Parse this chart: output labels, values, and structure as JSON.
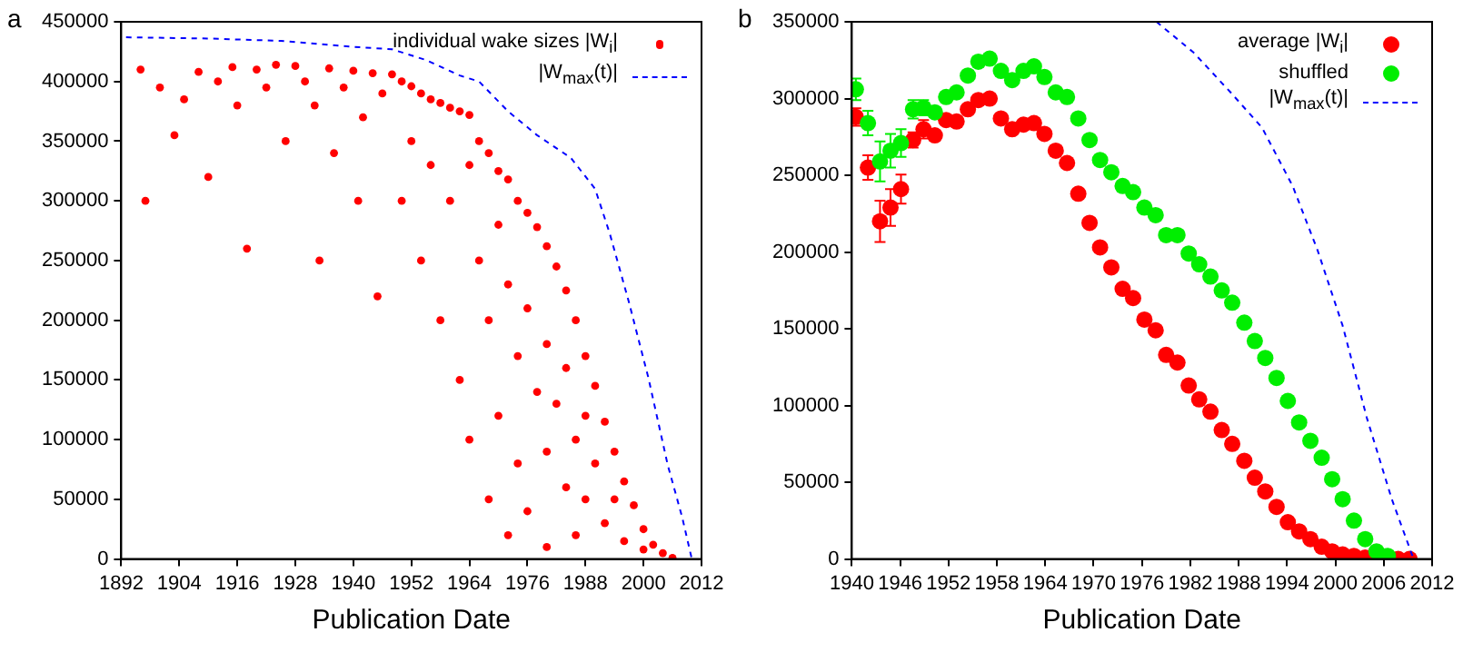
{
  "chart_data": [
    {
      "type": "scatter",
      "title": "a",
      "xlabel": "Publication Date",
      "xlim": [
        1892,
        2012
      ],
      "xticks": [
        1892,
        1904,
        1916,
        1928,
        1940,
        1952,
        1964,
        1976,
        1988,
        2000,
        2012
      ],
      "ylim": [
        0,
        450000
      ],
      "yticks": [
        0,
        50000,
        100000,
        150000,
        200000,
        250000,
        300000,
        350000,
        400000,
        450000
      ],
      "legend": "top right",
      "marker": "circle",
      "series": [
        {
          "name": "individual wake sizes |W$_{i}$|",
          "color": "#ff0000",
          "x": [
            1896,
            1897,
            1900,
            1903,
            1905,
            1908,
            1910,
            1912,
            1915,
            1916,
            1918,
            1920,
            1922,
            1924,
            1926,
            1928,
            1930,
            1932,
            1933,
            1935,
            1936,
            1938,
            1940,
            1941,
            1942,
            1944,
            1945,
            1946,
            1948,
            1950,
            1950,
            1952,
            1952,
            1954,
            1954,
            1956,
            1956,
            1958,
            1958,
            1960,
            1960,
            1962,
            1962,
            1964,
            1964,
            1964,
            1966,
            1966,
            1968,
            1968,
            1968,
            1970,
            1970,
            1970,
            1972,
            1972,
            1972,
            1974,
            1974,
            1974,
            1976,
            1976,
            1976,
            1978,
            1978,
            1980,
            1980,
            1980,
            1980,
            1982,
            1982,
            1984,
            1984,
            1984,
            1986,
            1986,
            1986,
            1988,
            1988,
            1988,
            1990,
            1990,
            1992,
            1992,
            1994,
            1994,
            1996,
            1996,
            1998,
            2000,
            2000,
            2002,
            2004,
            2006
          ],
          "values": [
            410000,
            300000,
            395000,
            355000,
            385000,
            408000,
            320000,
            400000,
            412000,
            380000,
            260000,
            410000,
            395000,
            414000,
            350000,
            413000,
            400000,
            380000,
            250000,
            411000,
            340000,
            395000,
            409000,
            300000,
            370000,
            407000,
            220000,
            390000,
            406000,
            400000,
            300000,
            396000,
            350000,
            390000,
            250000,
            385000,
            330000,
            382000,
            200000,
            378000,
            300000,
            375000,
            150000,
            372000,
            330000,
            100000,
            350000,
            250000,
            340000,
            200000,
            50000,
            325000,
            280000,
            120000,
            318000,
            230000,
            20000,
            300000,
            170000,
            80000,
            290000,
            210000,
            40000,
            278000,
            140000,
            262000,
            180000,
            90000,
            10000,
            245000,
            130000,
            225000,
            160000,
            60000,
            200000,
            100000,
            20000,
            170000,
            120000,
            50000,
            145000,
            80000,
            115000,
            30000,
            90000,
            50000,
            65000,
            15000,
            45000,
            25000,
            8000,
            12000,
            5000,
            1000
          ]
        },
        {
          "name": "|W$_{max}$(t)|",
          "type": "line",
          "color": "#0000ff",
          "line_style": "dashed",
          "marker": "none",
          "x": [
            1893,
            1910,
            1925,
            1940,
            1948,
            1955,
            1962,
            1966,
            1972,
            1978,
            1985,
            1990,
            1993,
            1997,
            2001,
            2005,
            2008,
            2010
          ],
          "values": [
            437000,
            436000,
            434000,
            429000,
            427000,
            418000,
            405000,
            400000,
            375000,
            355000,
            336000,
            310000,
            273000,
            215000,
            152000,
            79000,
            35000,
            0
          ]
        }
      ]
    },
    {
      "type": "scatter",
      "title": "b",
      "xlabel": "Publication Date",
      "xlim": [
        1940,
        2012
      ],
      "xticks": [
        1940,
        1946,
        1952,
        1958,
        1964,
        1970,
        1976,
        1982,
        1988,
        1994,
        2000,
        2006,
        2012
      ],
      "ylim": [
        0,
        350000
      ],
      "yticks": [
        0,
        50000,
        100000,
        150000,
        200000,
        250000,
        300000,
        350000
      ],
      "legend": "top right",
      "marker": "circle",
      "x": [
        1940.5,
        1942.0,
        1943.5,
        1944.8,
        1946.1,
        1947.6,
        1948.9,
        1950.3,
        1951.7,
        1953.0,
        1954.4,
        1955.7,
        1957.1,
        1958.5,
        1959.9,
        1961.3,
        1962.6,
        1963.9,
        1965.3,
        1966.7,
        1968.1,
        1969.5,
        1970.8,
        1972.2,
        1973.6,
        1974.9,
        1976.3,
        1977.7,
        1979.0,
        1980.4,
        1981.8,
        1983.1,
        1984.5,
        1985.9,
        1987.2,
        1988.7,
        1990.0,
        1991.3,
        1992.7,
        1994.1,
        1995.5,
        1996.9,
        1998.3,
        1999.6,
        2000.9,
        2002.3,
        2003.7,
        2005.1,
        2006.5,
        2007.8,
        2009.2
      ],
      "series": [
        {
          "name": "average |W$_{i}$|",
          "color": "#ff0000",
          "values": [
            288000,
            255000,
            220000,
            229000,
            241000,
            273000,
            280000,
            276000,
            286000,
            285000,
            293000,
            299000,
            300000,
            287000,
            280000,
            283000,
            284000,
            277000,
            266000,
            258000,
            238000,
            219000,
            203000,
            190000,
            176000,
            170000,
            156000,
            149000,
            133000,
            128000,
            113000,
            104000,
            96000,
            84000,
            75000,
            64000,
            53000,
            44000,
            34000,
            24000,
            18000,
            13000,
            8000,
            5000,
            3000,
            2000,
            1000,
            null,
            null,
            0,
            0
          ],
          "errors": [
            5700,
            8000,
            13500,
            12000,
            9500,
            5000,
            6000,
            null,
            null,
            null,
            null,
            null,
            null,
            null,
            null,
            null,
            null,
            null,
            null,
            null,
            null,
            null,
            null,
            null,
            null,
            null,
            null,
            null,
            null,
            null,
            null,
            null,
            null,
            null,
            null,
            null,
            null,
            null,
            null,
            null,
            null,
            null,
            null,
            null,
            null,
            null,
            null,
            null,
            null,
            null,
            null
          ]
        },
        {
          "name": "shuffled",
          "color": "#00ee00",
          "values": [
            306000,
            284000,
            259000,
            266000,
            271000,
            293000,
            294000,
            291000,
            301000,
            304000,
            315000,
            324000,
            326000,
            318000,
            312000,
            318000,
            321000,
            314000,
            304000,
            301000,
            287000,
            273000,
            260000,
            252000,
            243000,
            239000,
            229000,
            224000,
            211000,
            211000,
            199000,
            192000,
            184000,
            175000,
            167000,
            154000,
            142000,
            131000,
            118000,
            103000,
            89000,
            77000,
            66000,
            52000,
            39000,
            25000,
            13000,
            5000,
            2000,
            null,
            null
          ],
          "errors": [
            7000,
            8000,
            13000,
            11000,
            9000,
            6000,
            5000,
            null,
            null,
            null,
            null,
            null,
            null,
            null,
            null,
            null,
            null,
            null,
            null,
            null,
            null,
            null,
            null,
            null,
            null,
            null,
            null,
            null,
            null,
            null,
            null,
            null,
            null,
            null,
            null,
            null,
            null,
            null,
            null,
            null,
            null,
            null,
            null,
            null,
            null,
            null,
            null,
            null,
            null,
            null,
            null
          ]
        },
        {
          "name": "|W$_{max}$(t)|",
          "type": "line",
          "color": "#0000ff",
          "line_style": "dashed",
          "marker": "none",
          "x": [
            1977.8,
            1982.4,
            1987.0,
            1990.9,
            1994.7,
            1997.8,
            2000.9,
            2003.9,
            2007.0,
            2009.7
          ],
          "values": [
            350000,
            330000,
            304000,
            281000,
            243000,
            201000,
            152000,
            92000,
            39000,
            0
          ]
        }
      ]
    }
  ]
}
